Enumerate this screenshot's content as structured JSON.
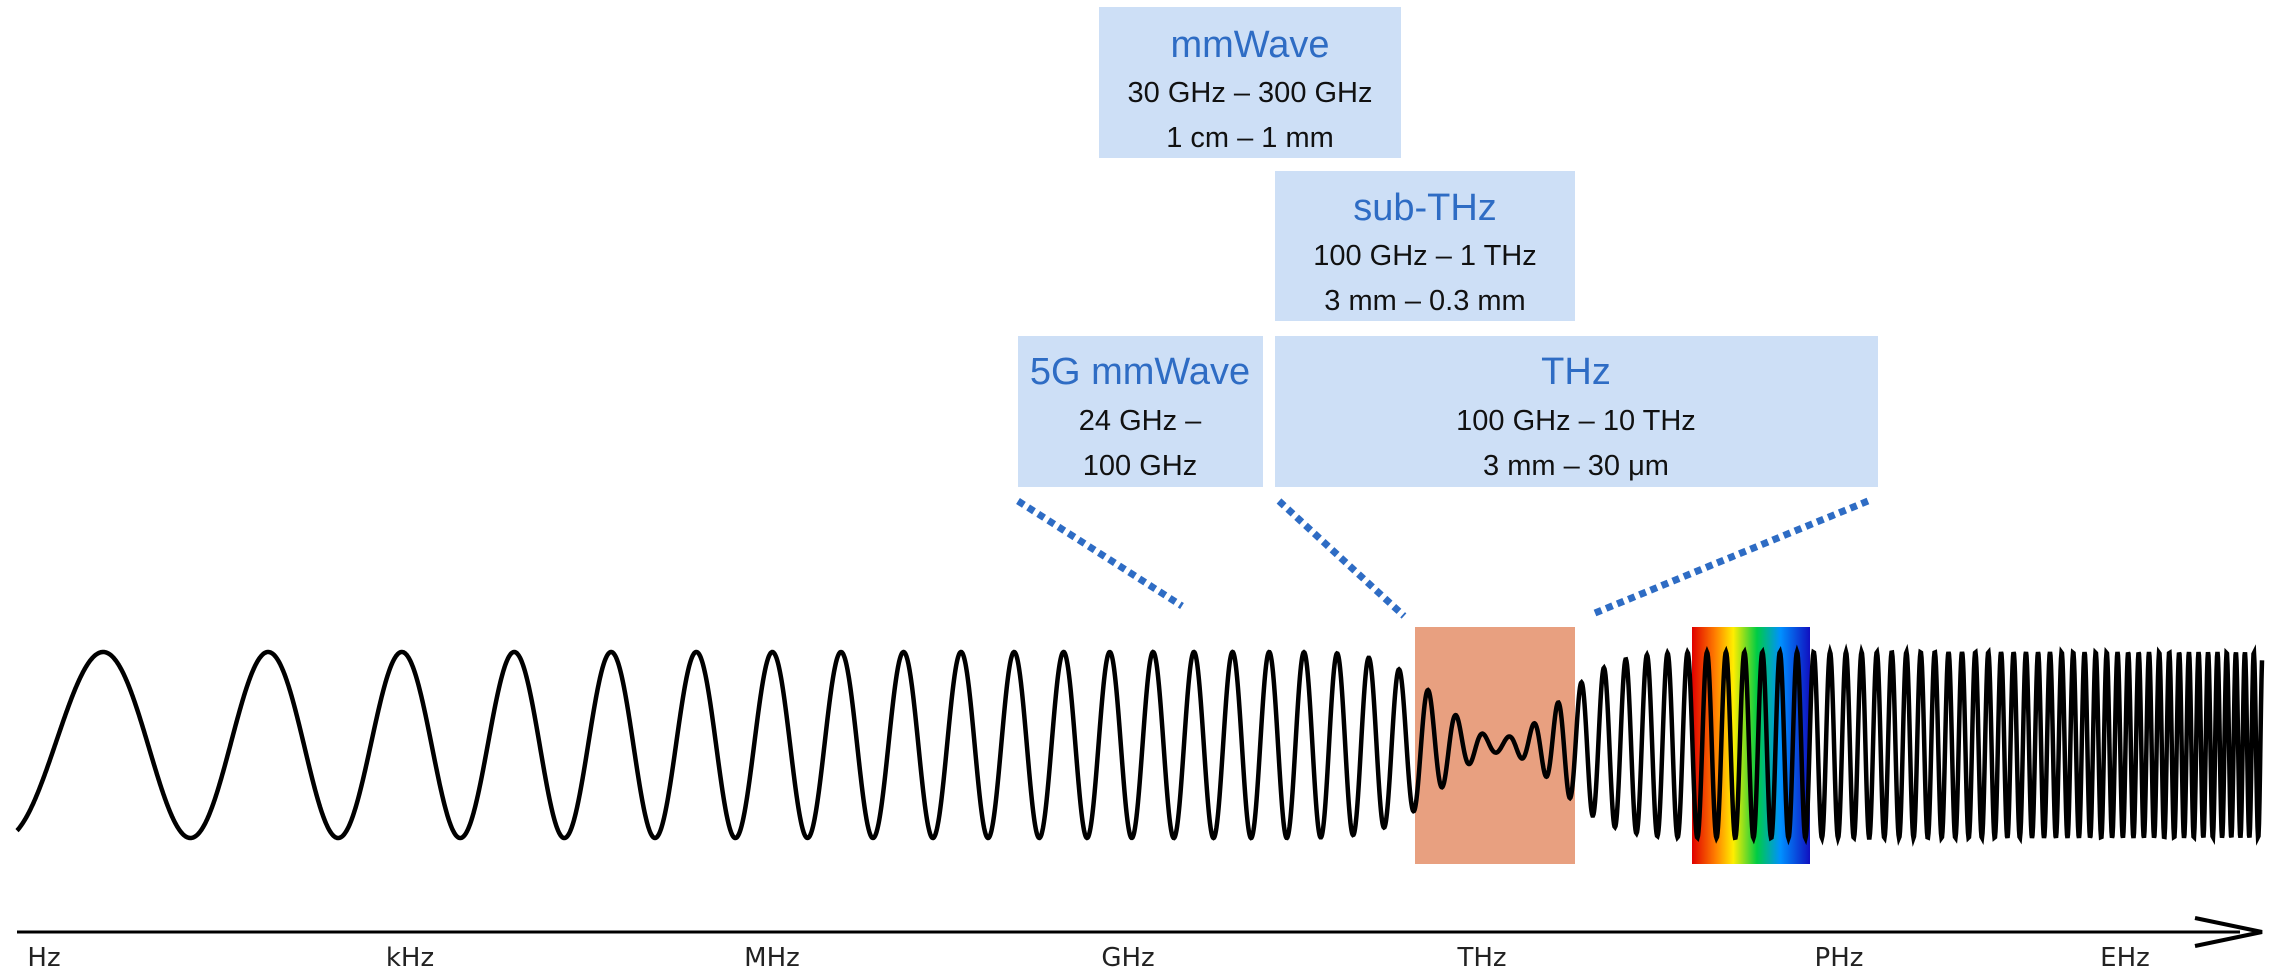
{
  "boxes": [
    {
      "title": "mmWave",
      "lines": [
        "30 GHz – 300 GHz",
        "1 cm – 1 mm"
      ]
    },
    {
      "title": "sub-THz",
      "lines": [
        "100 GHz – 1 THz",
        "3 mm – 0.3 mm"
      ]
    },
    {
      "title": "5G mmWave",
      "lines": [
        "24 GHz –",
        "100 GHz"
      ]
    },
    {
      "title": "THz",
      "lines": [
        "100 GHz – 10 THz",
        "3 mm – 30 μm"
      ]
    }
  ],
  "axis": {
    "labels": [
      "Hz",
      "kHz",
      "MHz",
      "GHz",
      "THz",
      "PHz",
      "EHz"
    ]
  }
}
